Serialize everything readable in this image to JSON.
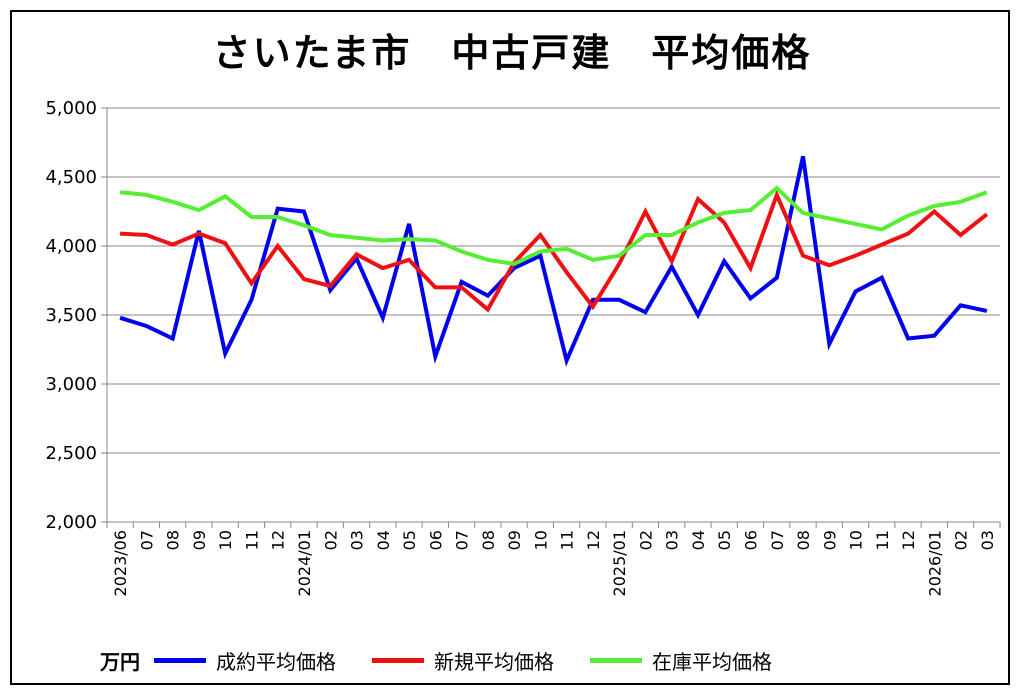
{
  "chart_data": {
    "type": "line",
    "title": "さいたま市　中古戸建　平均価格",
    "unit_label": "万円",
    "ylim": [
      2000,
      5000
    ],
    "y_ticks": [
      2000,
      2500,
      3000,
      3500,
      4000,
      4500,
      5000
    ],
    "y_tick_labels": [
      "2,000",
      "2,500",
      "3,000",
      "3,500",
      "4,000",
      "4,500",
      "5,000"
    ],
    "grid": true,
    "legend_position": "bottom",
    "categories": [
      "2023/06",
      "07",
      "08",
      "09",
      "10",
      "11",
      "12",
      "2024/01",
      "02",
      "03",
      "04",
      "05",
      "06",
      "07",
      "08",
      "09",
      "10",
      "11",
      "12",
      "2025/01",
      "02",
      "03",
      "04",
      "05",
      "06",
      "07",
      "08",
      "09",
      "10",
      "11",
      "12",
      "2026/01",
      "02",
      "03"
    ],
    "series": [
      {
        "name": "成約平均価格",
        "color": "#0000ee",
        "values": [
          3480,
          3420,
          3330,
          4110,
          3220,
          3610,
          4270,
          4250,
          3680,
          3910,
          3480,
          4160,
          3200,
          3740,
          3640,
          3840,
          3930,
          3170,
          3610,
          3610,
          3520,
          3850,
          3500,
          3890,
          3620,
          3770,
          4650,
          3290,
          3670,
          3770,
          3330,
          3350,
          3570,
          3530
        ]
      },
      {
        "name": "新規平均価格",
        "color": "#ee1111",
        "values": [
          4090,
          4080,
          4010,
          4090,
          4020,
          3730,
          4000,
          3760,
          3710,
          3940,
          3840,
          3900,
          3700,
          3700,
          3540,
          3880,
          4080,
          3810,
          3560,
          3870,
          4250,
          3890,
          4340,
          4170,
          3840,
          4370,
          3930,
          3860,
          3930,
          4010,
          4090,
          4250,
          4080,
          4230
        ]
      },
      {
        "name": "在庫平均価格",
        "color": "#55ee33",
        "values": [
          4390,
          4370,
          4320,
          4260,
          4360,
          4210,
          4210,
          4150,
          4080,
          4060,
          4040,
          4050,
          4040,
          3960,
          3900,
          3870,
          3960,
          3980,
          3900,
          3930,
          4080,
          4080,
          4170,
          4240,
          4260,
          4420,
          4240,
          4200,
          4160,
          4120,
          4220,
          4290,
          4320,
          4390
        ]
      }
    ]
  }
}
